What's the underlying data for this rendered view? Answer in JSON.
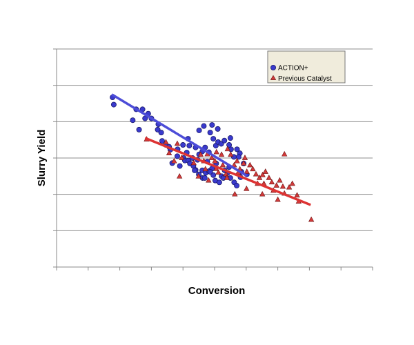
{
  "chart_data": {
    "type": "scatter",
    "title": "",
    "xlabel": "Conversion",
    "ylabel": "Slurry Yield",
    "xlim": [
      0,
      100
    ],
    "ylim": [
      0,
      6
    ],
    "y_gridlines": [
      1,
      2,
      3,
      4,
      5,
      6
    ],
    "x_minor_ticks": 10,
    "grid": true,
    "legend_position": "top-right",
    "colors": {
      "action_fill": "#3a3acd",
      "action_stroke": "#1a1a6a",
      "action_line": "#4d4dd8",
      "previous_fill": "#d23a3a",
      "previous_stroke": "#6a1010",
      "previous_line": "#dd3333",
      "grid": "#8c8c8c",
      "legend_bg": "#f0ecdc"
    },
    "series": [
      {
        "name": "ACTION+",
        "marker": "circle",
        "points": [
          [
            17.7,
            4.67
          ],
          [
            18.1,
            4.47
          ],
          [
            24.1,
            4.04
          ],
          [
            25.2,
            4.34
          ],
          [
            27.2,
            4.34
          ],
          [
            26.1,
            3.78
          ],
          [
            28.0,
            4.09
          ],
          [
            29.0,
            4.22
          ],
          [
            30.0,
            4.09
          ],
          [
            32.2,
            3.93
          ],
          [
            32.0,
            3.78
          ],
          [
            33.1,
            3.7
          ],
          [
            33.4,
            3.47
          ],
          [
            34.6,
            3.36
          ],
          [
            35.6,
            3.31
          ],
          [
            36.0,
            3.23
          ],
          [
            38.3,
            3.24
          ],
          [
            40.0,
            3.36
          ],
          [
            41.6,
            3.53
          ],
          [
            42.0,
            3.34
          ],
          [
            40.2,
            3.0
          ],
          [
            40.6,
            2.93
          ],
          [
            41.7,
            2.93
          ],
          [
            43.0,
            3.0
          ],
          [
            42.2,
            2.85
          ],
          [
            43.3,
            2.78
          ],
          [
            44.0,
            2.67
          ],
          [
            45.0,
            2.55
          ],
          [
            46.2,
            2.45
          ],
          [
            46.1,
            2.66
          ],
          [
            47.2,
            2.59
          ],
          [
            48.2,
            2.64
          ],
          [
            49.2,
            2.71
          ],
          [
            49.6,
            2.53
          ],
          [
            50.2,
            2.38
          ],
          [
            51.5,
            2.33
          ],
          [
            52.2,
            2.5
          ],
          [
            53.2,
            2.66
          ],
          [
            54.1,
            2.59
          ],
          [
            55.0,
            2.45
          ],
          [
            56.2,
            2.33
          ],
          [
            57.0,
            2.24
          ],
          [
            58.2,
            2.47
          ],
          [
            44.0,
            3.29
          ],
          [
            45.1,
            3.1
          ],
          [
            46.1,
            3.18
          ],
          [
            47.0,
            3.29
          ],
          [
            48.2,
            3.16
          ],
          [
            49.6,
            3.53
          ],
          [
            50.4,
            3.34
          ],
          [
            51.1,
            3.44
          ],
          [
            52.1,
            3.39
          ],
          [
            53.1,
            3.48
          ],
          [
            55.2,
            3.24
          ],
          [
            56.1,
            3.03
          ],
          [
            57.1,
            3.24
          ],
          [
            58.0,
            3.13
          ],
          [
            36.6,
            2.86
          ],
          [
            39.0,
            2.78
          ],
          [
            45.1,
            3.76
          ],
          [
            46.6,
            3.88
          ],
          [
            48.6,
            3.7
          ],
          [
            49.2,
            3.91
          ],
          [
            51.0,
            3.8
          ],
          [
            54.6,
            3.36
          ],
          [
            55.0,
            3.55
          ],
          [
            57.6,
            3.03
          ],
          [
            58.5,
            2.62
          ],
          [
            43.7,
            2.66
          ],
          [
            46.9,
            2.45
          ],
          [
            50.5,
            2.85
          ],
          [
            52.8,
            2.45
          ],
          [
            54.6,
            2.75
          ],
          [
            47.7,
            2.9
          ],
          [
            38.2,
            3.05
          ],
          [
            41.2,
            3.15
          ],
          [
            44.6,
            2.95
          ],
          [
            48.6,
            2.62
          ],
          [
            59.2,
            2.85
          ],
          [
            60.2,
            2.55
          ]
        ]
      },
      {
        "name": "Previous Catalyst",
        "marker": "triangle",
        "points": [
          [
            28.5,
            3.51
          ],
          [
            34.6,
            3.43
          ],
          [
            38.2,
            3.39
          ],
          [
            35.6,
            3.13
          ],
          [
            37.2,
            2.91
          ],
          [
            39.6,
            3.0
          ],
          [
            43.4,
            2.86
          ],
          [
            38.9,
            2.49
          ],
          [
            44.9,
            2.49
          ],
          [
            45.6,
            3.09
          ],
          [
            46.6,
            2.91
          ],
          [
            47.1,
            2.69
          ],
          [
            48.1,
            2.38
          ],
          [
            49.1,
            3.0
          ],
          [
            50.1,
            2.91
          ],
          [
            50.6,
            3.16
          ],
          [
            51.2,
            2.6
          ],
          [
            52.2,
            3.09
          ],
          [
            52.6,
            2.8
          ],
          [
            53.6,
            2.55
          ],
          [
            53.9,
            2.45
          ],
          [
            54.1,
            3.24
          ],
          [
            55.1,
            3.09
          ],
          [
            56.2,
            2.8
          ],
          [
            57.1,
            2.91
          ],
          [
            57.5,
            2.6
          ],
          [
            58.0,
            2.69
          ],
          [
            59.2,
            2.85
          ],
          [
            59.6,
            3.0
          ],
          [
            60.2,
            2.62
          ],
          [
            61.2,
            2.8
          ],
          [
            62.1,
            2.69
          ],
          [
            63.1,
            2.55
          ],
          [
            63.6,
            2.29
          ],
          [
            64.2,
            2.45
          ],
          [
            65.2,
            2.53
          ],
          [
            65.6,
            2.29
          ],
          [
            66.1,
            2.62
          ],
          [
            67.2,
            2.45
          ],
          [
            68.1,
            2.33
          ],
          [
            68.6,
            2.1
          ],
          [
            69.6,
            2.24
          ],
          [
            70.6,
            2.38
          ],
          [
            71.6,
            2.21
          ],
          [
            72.1,
            2.02
          ],
          [
            72.1,
            3.1
          ],
          [
            73.6,
            2.19
          ],
          [
            74.6,
            2.29
          ],
          [
            76.1,
            1.97
          ],
          [
            76.6,
            1.8
          ],
          [
            80.6,
            1.3
          ],
          [
            56.4,
            2.0
          ],
          [
            60.1,
            2.15
          ],
          [
            65.1,
            2.0
          ],
          [
            70.0,
            1.85
          ],
          [
            50.5,
            2.7
          ],
          [
            47.7,
            3.1
          ]
        ]
      }
    ],
    "trendlines": [
      {
        "name": "ACTION+",
        "x": [
          17.5,
          60.2
        ],
        "y": [
          4.75,
          2.51
        ]
      },
      {
        "name": "Previous Catalyst",
        "x": [
          28.0,
          80.4
        ],
        "y": [
          3.55,
          1.71
        ]
      }
    ]
  }
}
